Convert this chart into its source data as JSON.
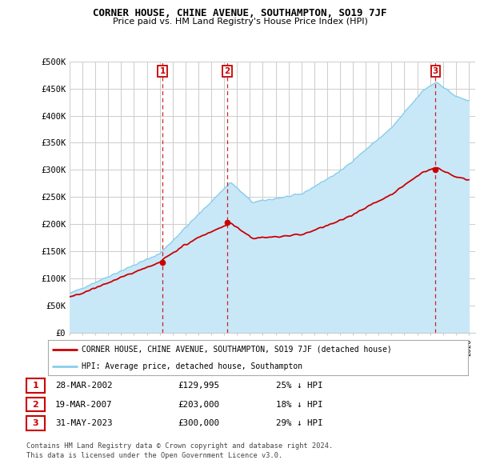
{
  "title": "CORNER HOUSE, CHINE AVENUE, SOUTHAMPTON, SO19 7JF",
  "subtitle": "Price paid vs. HM Land Registry's House Price Index (HPI)",
  "ylabel_ticks": [
    "£0",
    "£50K",
    "£100K",
    "£150K",
    "£200K",
    "£250K",
    "£300K",
    "£350K",
    "£400K",
    "£450K",
    "£500K"
  ],
  "ytick_values": [
    0,
    50000,
    100000,
    150000,
    200000,
    250000,
    300000,
    350000,
    400000,
    450000,
    500000
  ],
  "ylim": [
    0,
    500000
  ],
  "xlim_start": 1995.0,
  "xlim_end": 2026.5,
  "hpi_color": "#87CEEB",
  "hpi_fill_color": "#C8E8F8",
  "price_color": "#CC0000",
  "vline_color": "#CC0000",
  "background_color": "#FFFFFF",
  "plot_bg_color": "#FFFFFF",
  "grid_color": "#CCCCCC",
  "purchases": [
    {
      "label": 1,
      "date_num": 2002.23,
      "price": 129995,
      "text": "28-MAR-2002",
      "amount": "£129,995",
      "pct": "25% ↓ HPI"
    },
    {
      "label": 2,
      "date_num": 2007.22,
      "price": 203000,
      "text": "19-MAR-2007",
      "amount": "£203,000",
      "pct": "18% ↓ HPI"
    },
    {
      "label": 3,
      "date_num": 2023.42,
      "price": 300000,
      "text": "31-MAY-2023",
      "amount": "£300,000",
      "pct": "29% ↓ HPI"
    }
  ],
  "legend_label_red": "CORNER HOUSE, CHINE AVENUE, SOUTHAMPTON, SO19 7JF (detached house)",
  "legend_label_blue": "HPI: Average price, detached house, Southampton",
  "footer": "Contains HM Land Registry data © Crown copyright and database right 2024.\nThis data is licensed under the Open Government Licence v3.0."
}
